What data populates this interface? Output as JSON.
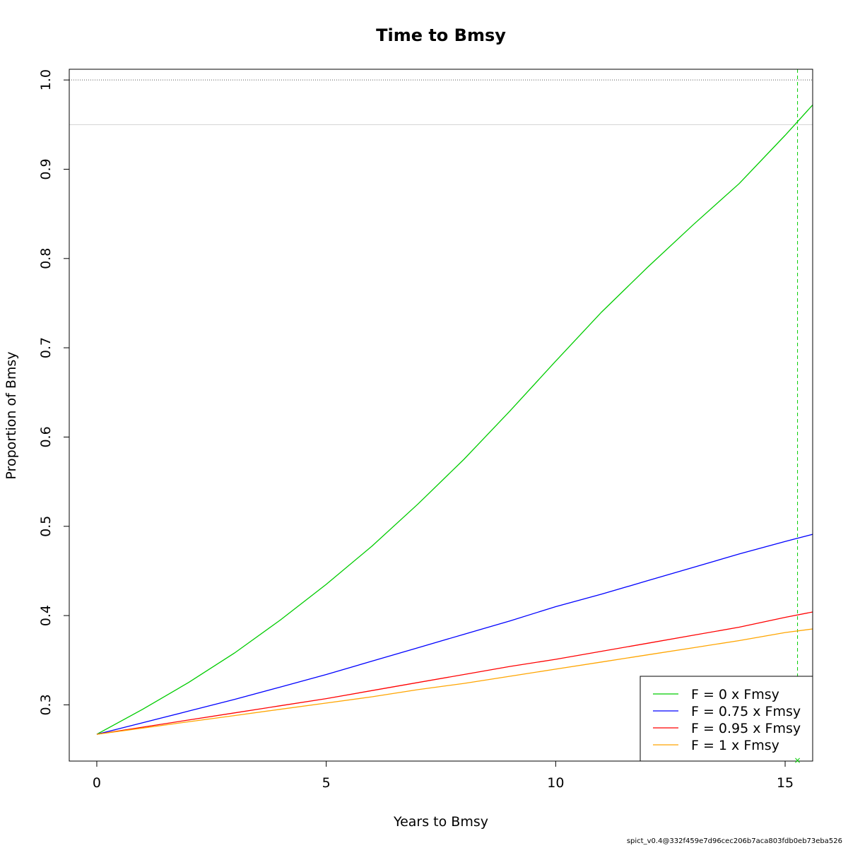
{
  "chart_data": {
    "type": "line",
    "title": "Time to Bmsy",
    "xlabel": "Years to Bmsy",
    "ylabel": "Proportion of Bmsy",
    "xlim": [
      -0.6,
      15.6
    ],
    "ylim": [
      0.237,
      1.012
    ],
    "x_ticks": [
      0,
      5,
      10,
      15
    ],
    "y_ticks": [
      0.3,
      0.4,
      0.5,
      0.6,
      0.7,
      0.8,
      0.9,
      1.0
    ],
    "x_tick_labels": [
      "0",
      "5",
      "10",
      "15"
    ],
    "y_tick_labels": [
      "0.3",
      "0.4",
      "0.5",
      "0.6",
      "0.7",
      "0.8",
      "0.9",
      "1.0"
    ],
    "reference_lines": {
      "hline_dotted": 1.0,
      "hline_light": 0.95,
      "vline_dashed": 15.27,
      "vline_color": "#00cc00"
    },
    "series": [
      {
        "name": "F = 0 x Fmsy",
        "color": "#00cc00",
        "x": [
          0,
          1,
          2,
          3,
          4,
          5,
          6,
          7,
          8,
          9,
          10,
          11,
          12,
          13,
          14,
          15,
          15.6
        ],
        "y": [
          0.267,
          0.295,
          0.325,
          0.358,
          0.395,
          0.435,
          0.478,
          0.525,
          0.575,
          0.629,
          0.685,
          0.74,
          0.79,
          0.838,
          0.884,
          0.938,
          0.972
        ]
      },
      {
        "name": "F = 0.75 x Fmsy",
        "color": "#0000ff",
        "x": [
          0,
          1,
          2,
          3,
          4,
          5,
          6,
          7,
          8,
          9,
          10,
          11,
          12,
          13,
          14,
          15,
          15.6
        ],
        "y": [
          0.267,
          0.28,
          0.293,
          0.306,
          0.32,
          0.334,
          0.349,
          0.364,
          0.379,
          0.394,
          0.41,
          0.424,
          0.439,
          0.454,
          0.469,
          0.483,
          0.491
        ]
      },
      {
        "name": "F = 0.95 x Fmsy",
        "color": "#ff0000",
        "x": [
          0,
          1,
          2,
          3,
          4,
          5,
          6,
          7,
          8,
          9,
          10,
          11,
          12,
          13,
          14,
          15,
          15.6
        ],
        "y": [
          0.267,
          0.275,
          0.283,
          0.291,
          0.299,
          0.307,
          0.316,
          0.325,
          0.334,
          0.343,
          0.351,
          0.36,
          0.369,
          0.378,
          0.387,
          0.398,
          0.404
        ]
      },
      {
        "name": "F = 1 x Fmsy",
        "color": "#ffa500",
        "x": [
          0,
          1,
          2,
          3,
          4,
          5,
          6,
          7,
          8,
          9,
          10,
          11,
          12,
          13,
          14,
          15,
          15.6
        ],
        "y": [
          0.267,
          0.274,
          0.281,
          0.288,
          0.295,
          0.302,
          0.309,
          0.317,
          0.324,
          0.332,
          0.34,
          0.348,
          0.356,
          0.364,
          0.372,
          0.381,
          0.385
        ]
      }
    ],
    "legend_position": "bottom-right",
    "grid": false
  },
  "footnote": "spict_v0.4@332f459e7d96cec206b7aca803fdb0eb73eba526"
}
